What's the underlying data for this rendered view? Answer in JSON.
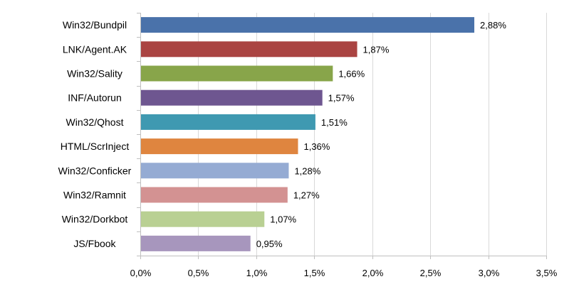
{
  "chart_data": {
    "type": "bar",
    "orientation": "horizontal",
    "categories": [
      "Win32/Bundpil",
      "LNK/Agent.AK",
      "Win32/Sality",
      "INF/Autorun",
      "Win32/Qhost",
      "HTML/ScrInject",
      "Win32/Conficker",
      "Win32/Ramnit",
      "Win32/Dorkbot",
      "JS/Fbook"
    ],
    "values": [
      2.88,
      1.87,
      1.66,
      1.57,
      1.51,
      1.36,
      1.28,
      1.27,
      1.07,
      0.95
    ],
    "value_labels": [
      "2,88%",
      "1,87%",
      "1,66%",
      "1,57%",
      "1,51%",
      "1,36%",
      "1,28%",
      "1,27%",
      "1,07%",
      "0,95%"
    ],
    "colors": [
      "#4a72aa",
      "#aa4442",
      "#88a54a",
      "#6e5690",
      "#3f99b1",
      "#df853f",
      "#95abd3",
      "#d39292",
      "#b9d093",
      "#a796bd"
    ],
    "xlim": [
      0,
      3.5
    ],
    "xticks": [
      0,
      0.5,
      1.0,
      1.5,
      2.0,
      2.5,
      3.0,
      3.5
    ],
    "xtick_labels": [
      "0,0%",
      "0,5%",
      "1,0%",
      "1,5%",
      "2,0%",
      "2,5%",
      "3,0%",
      "3,5%"
    ],
    "grid": true,
    "legend": "none",
    "title": "",
    "xlabel": "",
    "ylabel": ""
  }
}
